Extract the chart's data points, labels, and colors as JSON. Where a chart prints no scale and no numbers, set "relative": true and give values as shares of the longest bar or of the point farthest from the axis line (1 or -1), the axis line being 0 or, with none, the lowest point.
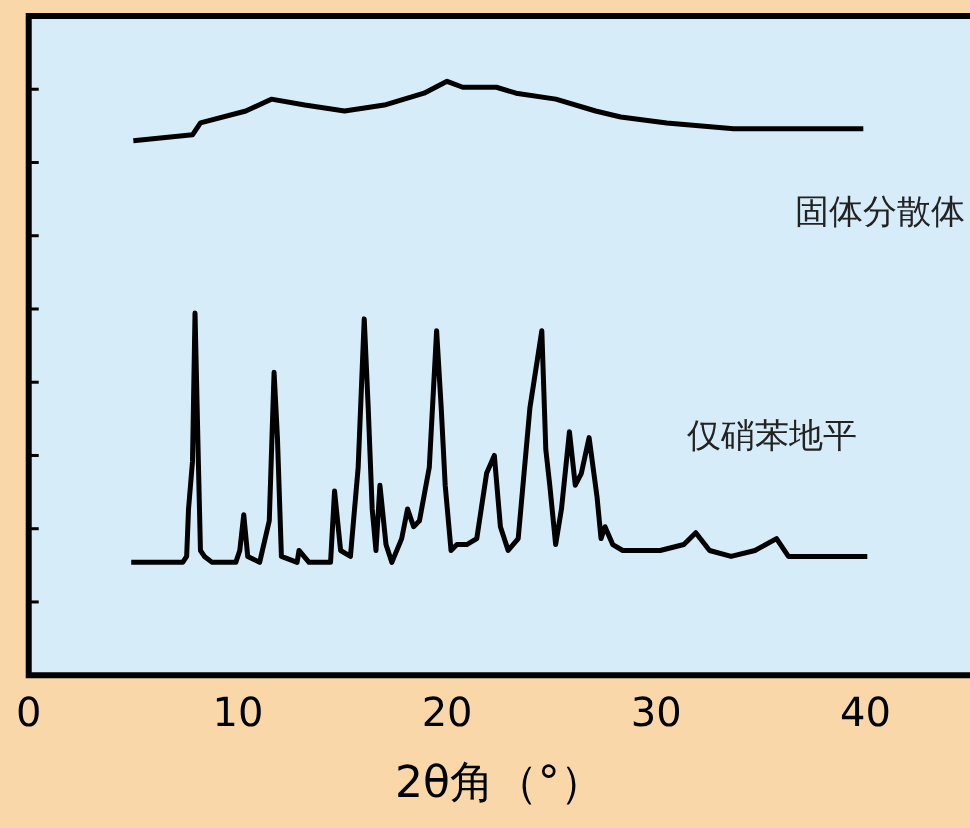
{
  "chart_data": {
    "type": "line",
    "xlabel": "2θ角（°）",
    "relative": true,
    "xlim": [
      0,
      45
    ],
    "xticks": [
      0,
      10,
      20,
      30,
      40
    ],
    "grid": false,
    "legend": false,
    "marker": "none",
    "line_style": "solid",
    "series": [
      {
        "name": "固体分散体",
        "color": "#000000",
        "x": [
          5.0,
          7.83,
          8.21,
          10.38,
          11.6,
          13.2,
          15.1,
          17.0,
          18.9,
          20.0,
          20.75,
          22.36,
          23.3,
          25.2,
          27.1,
          28.3,
          30.5,
          33.7,
          36.8,
          39.9
        ],
        "values": [
          0.9,
          0.91,
          0.93,
          0.95,
          0.97,
          0.96,
          0.95,
          0.96,
          0.98,
          1.0,
          0.99,
          0.99,
          0.98,
          0.97,
          0.95,
          0.94,
          0.93,
          0.92,
          0.92,
          0.92
        ]
      },
      {
        "name": "仅硝苯地平",
        "color": "#000000",
        "x": [
          4.9,
          7.36,
          7.55,
          7.64,
          7.83,
          7.95,
          8.11,
          8.21,
          8.4,
          8.77,
          9.9,
          10.09,
          10.28,
          10.47,
          11.04,
          11.5,
          11.73,
          11.89,
          12.08,
          12.83,
          12.92,
          13.4,
          14.43,
          14.62,
          14.91,
          15.38,
          15.75,
          16.04,
          16.23,
          16.42,
          16.6,
          16.79,
          17.08,
          17.36,
          17.83,
          18.11,
          18.4,
          18.68,
          19.15,
          19.5,
          19.72,
          19.91,
          20.19,
          20.47,
          20.94,
          21.42,
          21.89,
          22.26,
          22.55,
          22.92,
          23.4,
          23.96,
          24.53,
          24.72,
          24.91,
          25.19,
          25.47,
          25.85,
          26.13,
          26.42,
          26.79,
          27.17,
          27.36,
          27.55,
          27.92,
          28.4,
          29.25,
          30.19,
          31.32,
          31.89,
          32.55,
          33.58,
          34.72,
          35.75,
          36.32,
          37.74,
          39.15,
          40.09
        ],
        "values": [
          0.19,
          0.19,
          0.2,
          0.28,
          0.36,
          0.61,
          0.36,
          0.21,
          0.2,
          0.19,
          0.19,
          0.21,
          0.27,
          0.2,
          0.19,
          0.26,
          0.51,
          0.4,
          0.2,
          0.19,
          0.21,
          0.19,
          0.19,
          0.31,
          0.21,
          0.2,
          0.35,
          0.6,
          0.45,
          0.28,
          0.21,
          0.32,
          0.22,
          0.19,
          0.23,
          0.28,
          0.25,
          0.26,
          0.35,
          0.58,
          0.45,
          0.32,
          0.21,
          0.22,
          0.22,
          0.23,
          0.34,
          0.37,
          0.25,
          0.21,
          0.23,
          0.45,
          0.58,
          0.38,
          0.32,
          0.22,
          0.28,
          0.41,
          0.32,
          0.34,
          0.4,
          0.3,
          0.23,
          0.25,
          0.22,
          0.21,
          0.21,
          0.21,
          0.22,
          0.24,
          0.21,
          0.2,
          0.21,
          0.23,
          0.2,
          0.2,
          0.2,
          0.2
        ]
      }
    ]
  }
}
